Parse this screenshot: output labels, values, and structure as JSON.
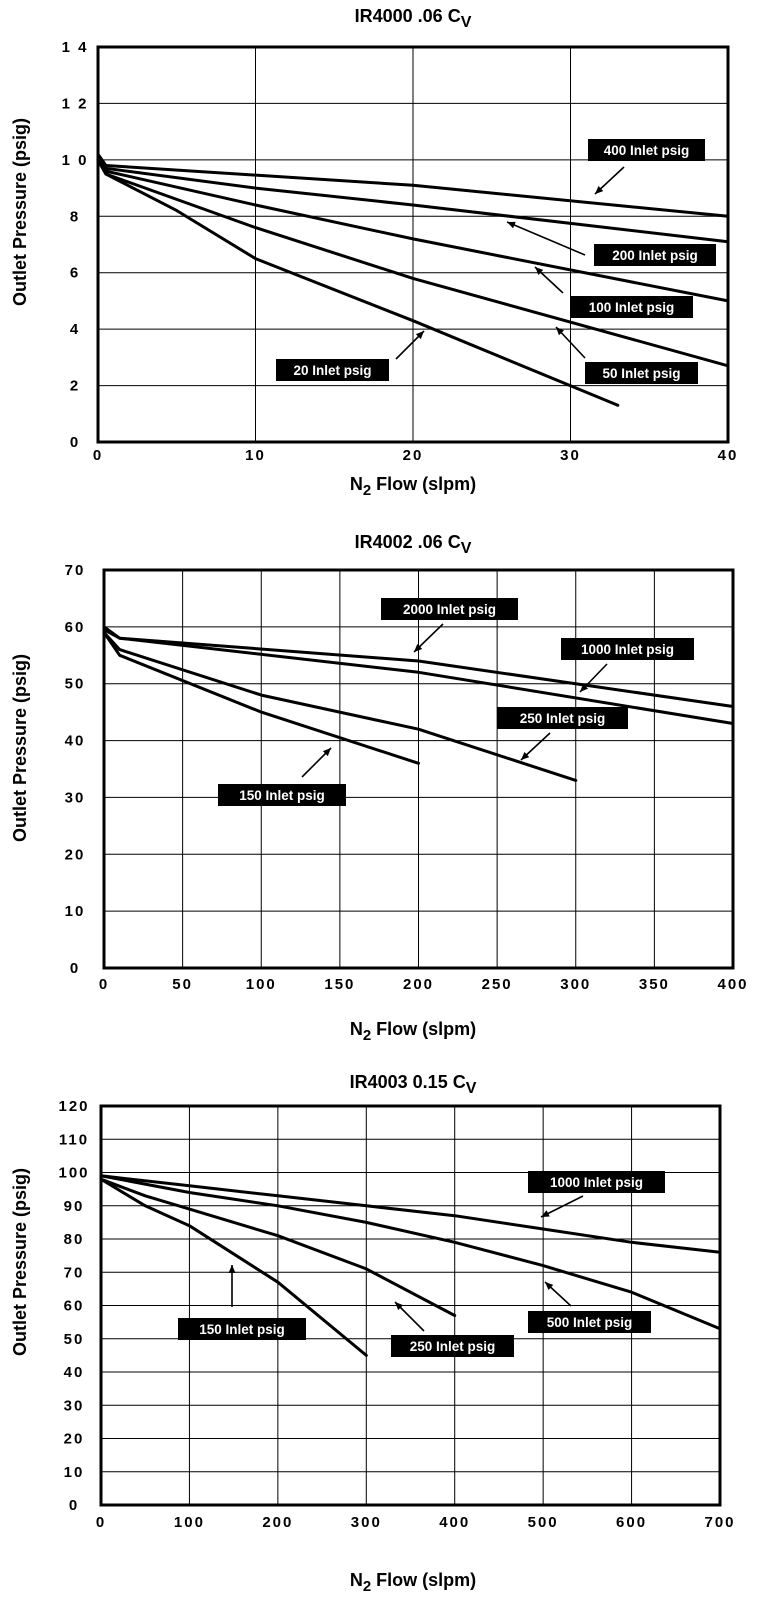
{
  "chart_data": [
    {
      "type": "line",
      "title": "IR4000 .06 C",
      "title_sub": "V",
      "xlabel_main": "N",
      "xlabel_sub": "2",
      "xlabel_rest": " Flow (slpm)",
      "ylabel": "Outlet Pressure (psig)",
      "xlim": [
        0,
        40
      ],
      "ylim": [
        0,
        14
      ],
      "xticks": [
        "0",
        "10",
        "20",
        "30",
        "40"
      ],
      "yticks": [
        "0",
        "2",
        "4",
        "6",
        "8",
        "1 0",
        "1 2",
        "1 4"
      ],
      "grid": true,
      "series": [
        {
          "name": "400 Inlet psig",
          "x": [
            0,
            0.5,
            20,
            40
          ],
          "y": [
            10.2,
            9.8,
            9.1,
            8.0
          ]
        },
        {
          "name": "200 Inlet psig",
          "x": [
            0,
            0.5,
            10,
            20,
            40
          ],
          "y": [
            10.1,
            9.7,
            9.0,
            8.4,
            7.1
          ]
        },
        {
          "name": "100 Inlet psig",
          "x": [
            0,
            0.5,
            10,
            20,
            40
          ],
          "y": [
            10.0,
            9.6,
            8.4,
            7.2,
            5.0
          ]
        },
        {
          "name": "50 Inlet psig",
          "x": [
            0,
            0.5,
            10,
            20,
            40
          ],
          "y": [
            10.0,
            9.5,
            7.6,
            5.8,
            2.7
          ]
        },
        {
          "name": "20 Inlet psig",
          "x": [
            0,
            0.5,
            5,
            10,
            20,
            33
          ],
          "y": [
            10.0,
            9.5,
            8.2,
            6.5,
            4.3,
            1.3
          ]
        }
      ]
    },
    {
      "type": "line",
      "title": "IR4002 .06 C",
      "title_sub": "V",
      "xlabel_main": "N",
      "xlabel_sub": "2",
      "xlabel_rest": " Flow (slpm)",
      "ylabel": "Outlet Pressure (psig)",
      "xlim": [
        0,
        400
      ],
      "ylim": [
        0,
        70
      ],
      "xticks": [
        "0",
        "50",
        "100",
        "150",
        "200",
        "250",
        "300",
        "350",
        "400"
      ],
      "yticks": [
        "0",
        "10",
        "20",
        "30",
        "40",
        "50",
        "60",
        "70"
      ],
      "grid": true,
      "series": [
        {
          "name": "2000 Inlet psig",
          "x": [
            0,
            10,
            200,
            400
          ],
          "y": [
            60,
            58,
            54,
            46
          ]
        },
        {
          "name": "1000 Inlet psig",
          "x": [
            0,
            10,
            200,
            400
          ],
          "y": [
            59.5,
            58,
            52,
            43
          ]
        },
        {
          "name": "250 Inlet psig",
          "x": [
            0,
            10,
            100,
            200,
            300
          ],
          "y": [
            59,
            56,
            48,
            42,
            33
          ]
        },
        {
          "name": "150 Inlet psig",
          "x": [
            0,
            10,
            100,
            200
          ],
          "y": [
            59,
            55,
            45,
            36
          ]
        }
      ]
    },
    {
      "type": "line",
      "title": "IR4003 0.15 C",
      "title_sub": "V",
      "xlabel_main": "N",
      "xlabel_sub": "2",
      "xlabel_rest": " Flow (slpm)",
      "ylabel": "Outlet Pressure (psig)",
      "xlim": [
        0,
        700
      ],
      "ylim": [
        0,
        120
      ],
      "xticks": [
        "0",
        "100",
        "200",
        "300",
        "400",
        "500",
        "600",
        "700"
      ],
      "yticks": [
        "0",
        "10",
        "20",
        "30",
        "40",
        "50",
        "60",
        "70",
        "80",
        "90",
        "100",
        "110",
        "120"
      ],
      "grid": true,
      "series": [
        {
          "name": "1000 Inlet psig",
          "x": [
            0,
            100,
            200,
            300,
            400,
            500,
            600,
            700
          ],
          "y": [
            99,
            96,
            93,
            90,
            87,
            83,
            79,
            76
          ]
        },
        {
          "name": "500 Inlet psig",
          "x": [
            0,
            100,
            200,
            300,
            400,
            500,
            600,
            700
          ],
          "y": [
            99,
            94,
            90,
            85,
            79,
            72,
            64,
            53
          ]
        },
        {
          "name": "250 Inlet psig",
          "x": [
            0,
            50,
            100,
            200,
            300,
            400
          ],
          "y": [
            98,
            93,
            89,
            81,
            71,
            57
          ]
        },
        {
          "name": "150 Inlet psig",
          "x": [
            0,
            50,
            100,
            200,
            300
          ],
          "y": [
            98,
            90,
            84,
            67,
            45
          ]
        }
      ]
    }
  ]
}
